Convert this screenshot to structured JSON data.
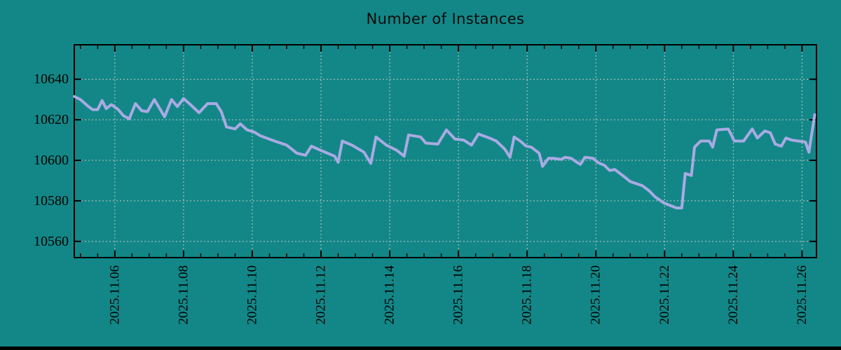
{
  "chart_data": {
    "type": "line",
    "title": "Number of Instances",
    "legend": false,
    "grid": true,
    "colors": {
      "background": "#138787",
      "line": "#a9aae4",
      "grid": "#c6c6c6",
      "axis": "#000000",
      "text": "#000000"
    },
    "x_axis": {
      "label": "",
      "tick_labels": [
        "2025.11.06",
        "2025.11.08",
        "2025.11.10",
        "2025.11.12",
        "2025.11.14",
        "2025.11.16",
        "2025.11.18",
        "2025.11.20",
        "2025.11.22",
        "2025.11.24",
        "2025.11.26"
      ],
      "tick_days": [
        6,
        8,
        10,
        12,
        14,
        16,
        18,
        20,
        22,
        24,
        26
      ],
      "minor_tick_interval_days": 0.5,
      "range_days": [
        4.82,
        26.42
      ]
    },
    "y_axis": {
      "label": "",
      "ticks": [
        10560,
        10580,
        10600,
        10620,
        10640
      ],
      "range": [
        10552,
        10657
      ]
    },
    "series": [
      {
        "name": "instances",
        "points": [
          [
            4.82,
            10631.5
          ],
          [
            5.0,
            10630
          ],
          [
            5.2,
            10627
          ],
          [
            5.35,
            10625
          ],
          [
            5.5,
            10625
          ],
          [
            5.63,
            10629.5
          ],
          [
            5.75,
            10625.5
          ],
          [
            5.9,
            10627.5
          ],
          [
            6.1,
            10625
          ],
          [
            6.25,
            10622
          ],
          [
            6.42,
            10620.5
          ],
          [
            6.6,
            10628
          ],
          [
            6.78,
            10624.5
          ],
          [
            6.95,
            10624
          ],
          [
            7.15,
            10630
          ],
          [
            7.45,
            10621.5
          ],
          [
            7.65,
            10630
          ],
          [
            7.82,
            10626.5
          ],
          [
            8.0,
            10630.5
          ],
          [
            8.2,
            10627.5
          ],
          [
            8.45,
            10623.5
          ],
          [
            8.7,
            10628
          ],
          [
            8.95,
            10628
          ],
          [
            9.1,
            10624
          ],
          [
            9.25,
            10616.5
          ],
          [
            9.5,
            10615.5
          ],
          [
            9.65,
            10618
          ],
          [
            9.85,
            10615
          ],
          [
            10.05,
            10614
          ],
          [
            10.25,
            10612
          ],
          [
            10.65,
            10609.5
          ],
          [
            11.0,
            10607.5
          ],
          [
            11.3,
            10603.5
          ],
          [
            11.55,
            10602.5
          ],
          [
            11.72,
            10607
          ],
          [
            12.05,
            10604.5
          ],
          [
            12.4,
            10602
          ],
          [
            12.5,
            10599
          ],
          [
            12.62,
            10609.5
          ],
          [
            12.9,
            10607.5
          ],
          [
            13.25,
            10604
          ],
          [
            13.45,
            10598.5
          ],
          [
            13.6,
            10611.5
          ],
          [
            13.9,
            10607.5
          ],
          [
            14.2,
            10605
          ],
          [
            14.42,
            10602
          ],
          [
            14.55,
            10612.5
          ],
          [
            14.9,
            10611.5
          ],
          [
            15.05,
            10608.5
          ],
          [
            15.4,
            10608
          ],
          [
            15.65,
            10615
          ],
          [
            15.9,
            10610.5
          ],
          [
            16.15,
            10610
          ],
          [
            16.38,
            10607.5
          ],
          [
            16.58,
            10613
          ],
          [
            16.9,
            10611
          ],
          [
            17.1,
            10609.5
          ],
          [
            17.35,
            10605.5
          ],
          [
            17.5,
            10601.5
          ],
          [
            17.62,
            10611.5
          ],
          [
            17.8,
            10609.5
          ],
          [
            17.97,
            10607
          ],
          [
            18.12,
            10606.5
          ],
          [
            18.35,
            10603.5
          ],
          [
            18.45,
            10597
          ],
          [
            18.62,
            10601
          ],
          [
            18.75,
            10601
          ],
          [
            19.0,
            10600.5
          ],
          [
            19.1,
            10601.5
          ],
          [
            19.28,
            10601
          ],
          [
            19.45,
            10599
          ],
          [
            19.55,
            10598
          ],
          [
            19.68,
            10601.5
          ],
          [
            19.92,
            10601
          ],
          [
            20.05,
            10599
          ],
          [
            20.25,
            10597.5
          ],
          [
            20.4,
            10595
          ],
          [
            20.55,
            10595.5
          ],
          [
            20.78,
            10592.5
          ],
          [
            21.0,
            10589.5
          ],
          [
            21.35,
            10587.5
          ],
          [
            21.55,
            10585
          ],
          [
            21.72,
            10582
          ],
          [
            21.97,
            10579
          ],
          [
            22.2,
            10577.5
          ],
          [
            22.35,
            10576.5
          ],
          [
            22.5,
            10576.5
          ],
          [
            22.6,
            10593.5
          ],
          [
            22.78,
            10592.5
          ],
          [
            22.87,
            10606.5
          ],
          [
            23.05,
            10609.5
          ],
          [
            23.3,
            10609.5
          ],
          [
            23.4,
            10606.5
          ],
          [
            23.52,
            10615
          ],
          [
            23.85,
            10615.5
          ],
          [
            23.93,
            10613
          ],
          [
            24.03,
            10609.5
          ],
          [
            24.3,
            10609.5
          ],
          [
            24.55,
            10615.5
          ],
          [
            24.7,
            10611
          ],
          [
            24.92,
            10614.5
          ],
          [
            25.08,
            10613.5
          ],
          [
            25.22,
            10608
          ],
          [
            25.4,
            10607
          ],
          [
            25.53,
            10611
          ],
          [
            25.7,
            10610
          ],
          [
            25.9,
            10609.5
          ],
          [
            26.1,
            10609
          ],
          [
            26.2,
            10604
          ],
          [
            26.37,
            10622.5
          ]
        ]
      }
    ]
  }
}
